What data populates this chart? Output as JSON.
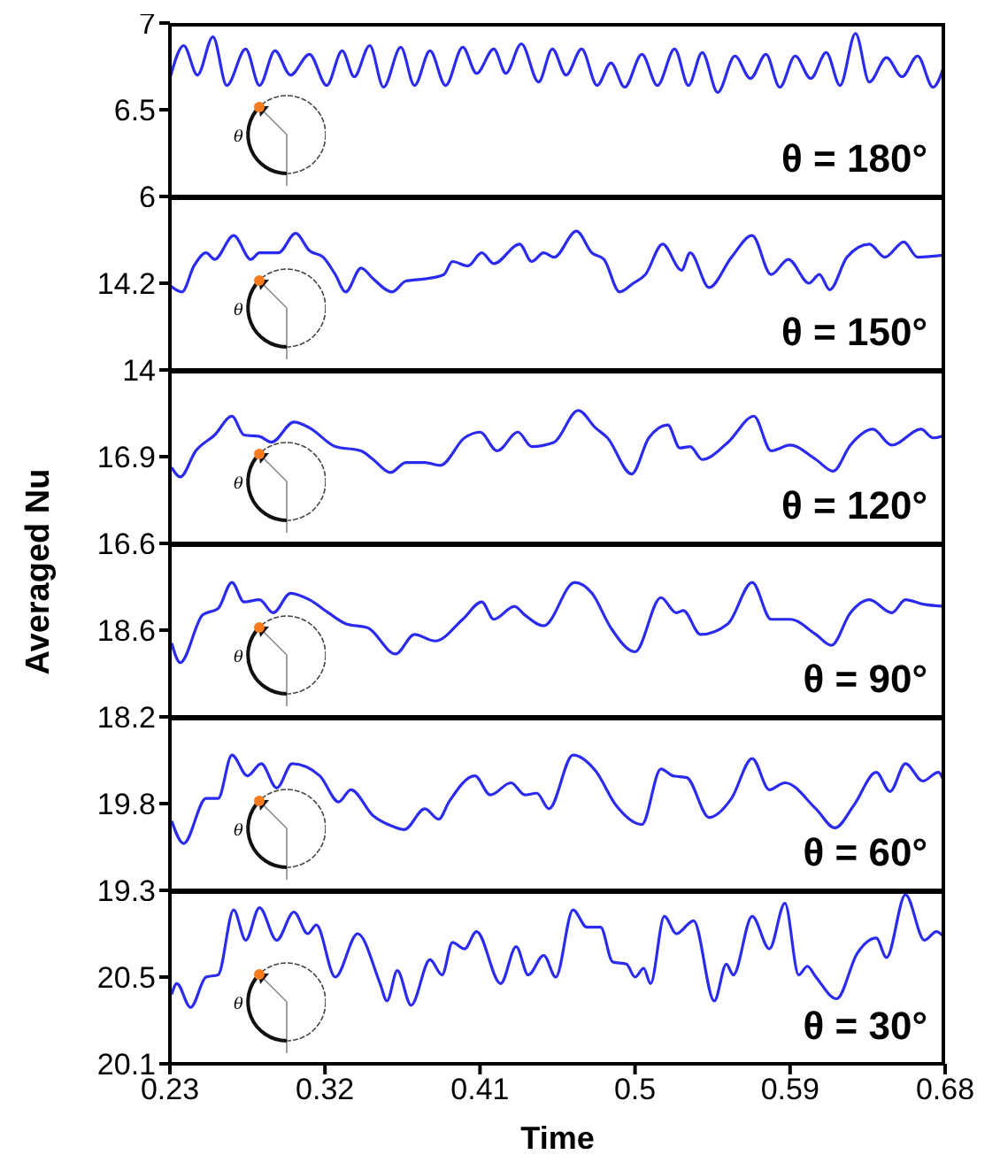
{
  "chart_data": [
    {
      "type": "line",
      "annotations": [
        "θ = 180°",
        "θ"
      ],
      "xlim": [
        0.23,
        0.68
      ],
      "xticks": [
        0.23,
        0.32,
        0.41,
        0.5,
        0.59,
        0.68
      ],
      "ylim": [
        6,
        7
      ],
      "yticks": [
        6,
        6.5,
        7
      ],
      "tick_labels": "y",
      "x": [
        0.23,
        0.238,
        0.246,
        0.255,
        0.263,
        0.274,
        0.282,
        0.291,
        0.3,
        0.311,
        0.321,
        0.33,
        0.337,
        0.346,
        0.354,
        0.364,
        0.372,
        0.381,
        0.39,
        0.4,
        0.408,
        0.418,
        0.425,
        0.434,
        0.444,
        0.452,
        0.46,
        0.469,
        0.478,
        0.486,
        0.494,
        0.504,
        0.513,
        0.523,
        0.531,
        0.539,
        0.548,
        0.558,
        0.567,
        0.576,
        0.584,
        0.593,
        0.602,
        0.611,
        0.619,
        0.628,
        0.636,
        0.646,
        0.655,
        0.664,
        0.673,
        0.68
      ],
      "series": [
        {
          "color": "#2b2bf0",
          "values": [
            6.68,
            6.87,
            6.7,
            6.92,
            6.64,
            6.85,
            6.64,
            6.84,
            6.7,
            6.82,
            6.64,
            6.84,
            6.69,
            6.87,
            6.63,
            6.86,
            6.64,
            6.84,
            6.64,
            6.86,
            6.71,
            6.85,
            6.71,
            6.88,
            6.66,
            6.85,
            6.7,
            6.85,
            6.64,
            6.77,
            6.63,
            6.82,
            6.64,
            6.85,
            6.64,
            6.83,
            6.6,
            6.81,
            6.68,
            6.82,
            6.63,
            6.81,
            6.68,
            6.83,
            6.64,
            6.94,
            6.66,
            6.8,
            6.69,
            6.81,
            6.63,
            6.77
          ]
        }
      ]
    },
    {
      "type": "line",
      "annotations": [
        "θ = 150°",
        "θ"
      ],
      "xlim": [
        0.23,
        0.68
      ],
      "xticks": [
        0.23,
        0.32,
        0.41,
        0.5,
        0.59,
        0.68
      ],
      "ylim": [
        14,
        14.4
      ],
      "yticks": [
        14,
        14.2
      ],
      "tick_labels": "y",
      "x": [
        0.23,
        0.237,
        0.244,
        0.251,
        0.256,
        0.267,
        0.277,
        0.282,
        0.293,
        0.303,
        0.311,
        0.319,
        0.326,
        0.332,
        0.341,
        0.348,
        0.359,
        0.367,
        0.378,
        0.389,
        0.394,
        0.403,
        0.411,
        0.418,
        0.433,
        0.44,
        0.447,
        0.453,
        0.466,
        0.475,
        0.482,
        0.491,
        0.499,
        0.506,
        0.516,
        0.527,
        0.532,
        0.543,
        0.556,
        0.568,
        0.579,
        0.589,
        0.601,
        0.607,
        0.613,
        0.623,
        0.636,
        0.645,
        0.656,
        0.664,
        0.68
      ],
      "series": [
        {
          "color": "#2b2bf0",
          "values": [
            14.195,
            14.18,
            14.24,
            14.27,
            14.255,
            14.31,
            14.255,
            14.27,
            14.27,
            14.315,
            14.275,
            14.26,
            14.22,
            14.18,
            14.235,
            14.21,
            14.18,
            14.205,
            14.21,
            14.22,
            14.25,
            14.24,
            14.27,
            14.245,
            14.29,
            14.25,
            14.27,
            14.26,
            14.32,
            14.27,
            14.255,
            14.18,
            14.2,
            14.22,
            14.29,
            14.23,
            14.27,
            14.19,
            14.26,
            14.31,
            14.22,
            14.255,
            14.2,
            14.22,
            14.185,
            14.26,
            14.29,
            14.26,
            14.295,
            14.26,
            14.265
          ]
        }
      ]
    },
    {
      "type": "line",
      "annotations": [
        "θ = 120°",
        "θ"
      ],
      "xlim": [
        0.23,
        0.68
      ],
      "xticks": [
        0.23,
        0.32,
        0.41,
        0.5,
        0.59,
        0.68
      ],
      "ylim": [
        16.6,
        17.2
      ],
      "yticks": [
        16.6,
        16.9
      ],
      "tick_labels": "y",
      "x": [
        0.231,
        0.236,
        0.245,
        0.256,
        0.266,
        0.273,
        0.282,
        0.289,
        0.302,
        0.311,
        0.326,
        0.341,
        0.348,
        0.358,
        0.367,
        0.378,
        0.387,
        0.401,
        0.41,
        0.42,
        0.432,
        0.44,
        0.453,
        0.467,
        0.477,
        0.484,
        0.498,
        0.508,
        0.519,
        0.526,
        0.532,
        0.539,
        0.554,
        0.569,
        0.579,
        0.59,
        0.605,
        0.615,
        0.625,
        0.638,
        0.649,
        0.666,
        0.673,
        0.68
      ],
      "series": [
        {
          "color": "#2b2bf0",
          "values": [
            16.863,
            16.83,
            16.92,
            16.975,
            17.04,
            16.975,
            16.97,
            16.95,
            17.02,
            17.0,
            16.935,
            16.92,
            16.89,
            16.845,
            16.88,
            16.88,
            16.87,
            16.965,
            16.985,
            16.92,
            16.985,
            16.935,
            16.95,
            17.06,
            17.0,
            16.965,
            16.84,
            16.965,
            17.01,
            16.93,
            16.935,
            16.89,
            16.95,
            17.04,
            16.92,
            16.94,
            16.89,
            16.85,
            16.94,
            16.995,
            16.94,
            16.995,
            16.965,
            16.975
          ]
        }
      ]
    },
    {
      "type": "line",
      "ylabel": "Averaged Nu",
      "annotations": [
        "θ = 90°",
        "θ"
      ],
      "xlim": [
        0.23,
        0.68
      ],
      "xticks": [
        0.23,
        0.32,
        0.41,
        0.5,
        0.59,
        0.68
      ],
      "ylim": [
        18.2,
        19.0
      ],
      "yticks": [
        18.2,
        18.6
      ],
      "tick_labels": "y",
      "x": [
        0.231,
        0.236,
        0.249,
        0.258,
        0.266,
        0.273,
        0.282,
        0.29,
        0.3,
        0.311,
        0.322,
        0.332,
        0.345,
        0.361,
        0.372,
        0.384,
        0.4,
        0.411,
        0.418,
        0.43,
        0.436,
        0.447,
        0.465,
        0.475,
        0.486,
        0.5,
        0.515,
        0.524,
        0.528,
        0.538,
        0.554,
        0.568,
        0.579,
        0.59,
        0.605,
        0.614,
        0.625,
        0.636,
        0.649,
        0.657,
        0.667,
        0.68
      ],
      "series": [
        {
          "color": "#2b2bf0",
          "values": [
            18.54,
            18.45,
            18.67,
            18.7,
            18.82,
            18.73,
            18.74,
            18.68,
            18.77,
            18.74,
            18.68,
            18.63,
            18.61,
            18.49,
            18.58,
            18.55,
            18.65,
            18.73,
            18.65,
            18.71,
            18.67,
            18.62,
            18.82,
            18.77,
            18.61,
            18.5,
            18.75,
            18.68,
            18.69,
            18.58,
            18.63,
            18.82,
            18.65,
            18.65,
            18.58,
            18.53,
            18.68,
            18.74,
            18.68,
            18.74,
            18.72,
            18.71
          ]
        }
      ]
    },
    {
      "type": "line",
      "annotations": [
        "θ = 60°",
        "θ"
      ],
      "xlim": [
        0.23,
        0.68
      ],
      "xticks": [
        0.23,
        0.32,
        0.41,
        0.5,
        0.59,
        0.68
      ],
      "ylim": [
        19.3,
        20.3
      ],
      "yticks": [
        19.3,
        19.8
      ],
      "tick_labels": "y",
      "x": [
        0.231,
        0.238,
        0.251,
        0.258,
        0.266,
        0.275,
        0.283,
        0.292,
        0.301,
        0.317,
        0.328,
        0.335,
        0.348,
        0.359,
        0.366,
        0.378,
        0.386,
        0.392,
        0.407,
        0.416,
        0.428,
        0.436,
        0.443,
        0.45,
        0.464,
        0.477,
        0.489,
        0.504,
        0.515,
        0.522,
        0.53,
        0.543,
        0.556,
        0.568,
        0.578,
        0.587,
        0.605,
        0.616,
        0.627,
        0.64,
        0.648,
        0.657,
        0.667,
        0.676,
        0.68
      ],
      "series": [
        {
          "color": "#2b2bf0",
          "values": [
            19.7,
            19.57,
            19.83,
            19.83,
            20.08,
            19.96,
            20.03,
            19.89,
            20.03,
            19.96,
            19.81,
            19.88,
            19.73,
            19.67,
            19.65,
            19.77,
            19.71,
            19.81,
            19.96,
            19.85,
            19.92,
            19.85,
            19.86,
            19.77,
            20.08,
            19.99,
            19.79,
            19.68,
            20.0,
            19.96,
            19.95,
            19.72,
            19.83,
            20.06,
            19.88,
            19.92,
            19.77,
            19.66,
            19.79,
            19.98,
            19.87,
            20.03,
            19.93,
            19.98,
            19.91
          ]
        }
      ]
    },
    {
      "type": "line",
      "xlabel": "Time",
      "annotations": [
        "θ = 30°",
        "θ"
      ],
      "xlim": [
        0.23,
        0.68
      ],
      "xticks": [
        0.23,
        0.32,
        0.41,
        0.5,
        0.59,
        0.68
      ],
      "ylim": [
        20.1,
        20.9
      ],
      "yticks": [
        20.1,
        20.5
      ],
      "x": [
        0.231,
        0.234,
        0.242,
        0.251,
        0.258,
        0.267,
        0.274,
        0.282,
        0.292,
        0.302,
        0.31,
        0.315,
        0.326,
        0.339,
        0.352,
        0.356,
        0.362,
        0.37,
        0.381,
        0.388,
        0.394,
        0.401,
        0.408,
        0.422,
        0.431,
        0.438,
        0.447,
        0.454,
        0.464,
        0.472,
        0.48,
        0.487,
        0.495,
        0.5,
        0.505,
        0.509,
        0.517,
        0.524,
        0.534,
        0.546,
        0.553,
        0.557,
        0.568,
        0.578,
        0.587,
        0.595,
        0.6,
        0.605,
        0.617,
        0.629,
        0.64,
        0.646,
        0.657,
        0.668,
        0.675,
        0.68
      ],
      "series": [
        {
          "color": "#2b2bf0",
          "values": [
            20.42,
            20.47,
            20.36,
            20.5,
            20.51,
            20.81,
            20.67,
            20.82,
            20.67,
            20.8,
            20.7,
            20.74,
            20.5,
            20.7,
            20.47,
            20.39,
            20.53,
            20.37,
            20.58,
            20.51,
            20.66,
            20.63,
            20.71,
            20.47,
            20.64,
            20.51,
            20.6,
            20.5,
            20.81,
            20.73,
            20.73,
            20.57,
            20.56,
            20.5,
            20.54,
            20.47,
            20.78,
            20.7,
            20.76,
            20.39,
            20.56,
            20.51,
            20.78,
            20.63,
            20.84,
            20.51,
            20.55,
            20.5,
            20.4,
            20.61,
            20.68,
            20.59,
            20.88,
            20.67,
            20.71,
            20.68
          ]
        }
      ]
    }
  ]
}
